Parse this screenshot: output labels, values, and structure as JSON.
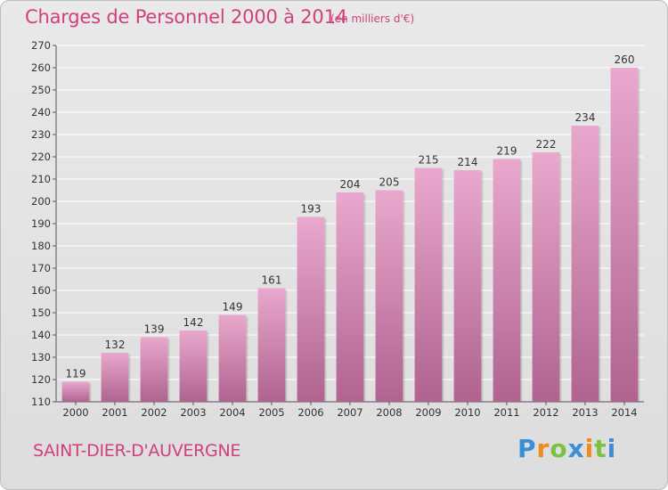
{
  "title": "Charges de Personnel 2000 à 2014",
  "subtitle": "(en milliers d'€)",
  "commune": "SAINT-DIER-D'AUVERGNE",
  "logo": {
    "letters": [
      "P",
      "r",
      "o",
      "x",
      "i",
      "t",
      "i"
    ]
  },
  "colors": {
    "accent": "#d0407c",
    "bar_top": "#e9a8cd",
    "bar_bottom": "#b0638f",
    "grid": "#ffffff"
  },
  "chart_data": {
    "type": "bar",
    "categories": [
      "2000",
      "2001",
      "2002",
      "2003",
      "2004",
      "2005",
      "2006",
      "2007",
      "2008",
      "2009",
      "2010",
      "2011",
      "2012",
      "2013",
      "2014"
    ],
    "values": [
      119,
      132,
      139,
      142,
      149,
      161,
      193,
      204,
      205,
      215,
      214,
      219,
      222,
      234,
      260
    ],
    "title": "Charges de Personnel 2000 à 2014",
    "subtitle": "(en milliers d'€)",
    "xlabel": "",
    "ylabel": "",
    "ylim": [
      110,
      270
    ],
    "yticks": [
      110,
      120,
      130,
      140,
      150,
      160,
      170,
      180,
      190,
      200,
      210,
      220,
      230,
      240,
      250,
      260,
      270
    ],
    "grid": true,
    "data_labels": true
  }
}
